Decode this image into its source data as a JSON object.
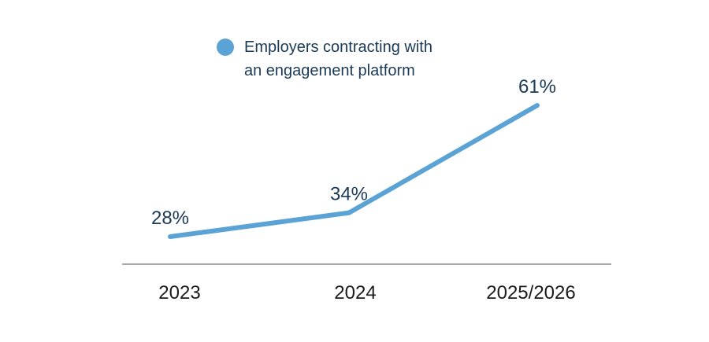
{
  "chart_data": {
    "type": "line",
    "title": "",
    "xlabel": "",
    "ylabel": "",
    "categories": [
      "2023",
      "2024",
      "2025/2026"
    ],
    "series": [
      {
        "name": "Employers contracting with an engagement platform",
        "legend_lines": [
          "Employers contracting with",
          "an engagement platform"
        ],
        "values": [
          28,
          34,
          61
        ],
        "data_labels": [
          "28%",
          "34%",
          "61%"
        ],
        "color": "#5ba3d4"
      }
    ],
    "ylim": [
      0,
      70
    ],
    "grid": false,
    "legend_position": "top-center"
  },
  "colors": {
    "series": "#5ba3d4",
    "axis": "#555555",
    "label": "#1b3a57",
    "tick": "#1b1b1b"
  }
}
